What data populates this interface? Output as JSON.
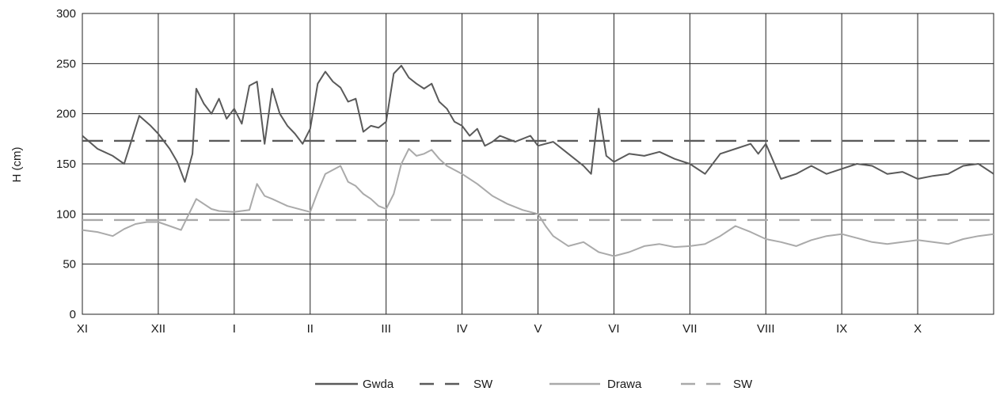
{
  "chart_data": {
    "type": "line",
    "title": "",
    "xlabel": "",
    "ylabel": "H (cm)",
    "ylim": [
      0,
      300
    ],
    "yticks": [
      "0",
      "50",
      "100",
      "150",
      "200",
      "250",
      "300"
    ],
    "categories": [
      "XI",
      "XII",
      "I",
      "II",
      "III",
      "IV",
      "V",
      "VI",
      "VII",
      "VIII",
      "IX",
      "X"
    ],
    "grid": "on",
    "legend_position": "bottom",
    "x_unit": "months (continuous, 12 months from XI to X)",
    "series": [
      {
        "name": "Gwda",
        "color": "#5a5a5a",
        "style": "solid",
        "x": [
          0.0,
          0.2,
          0.4,
          0.55,
          0.6,
          0.75,
          0.9,
          1.0,
          1.15,
          1.25,
          1.35,
          1.45,
          1.5,
          1.6,
          1.7,
          1.8,
          1.9,
          2.0,
          2.1,
          2.2,
          2.3,
          2.4,
          2.5,
          2.6,
          2.7,
          2.8,
          2.9,
          3.0,
          3.1,
          3.2,
          3.3,
          3.4,
          3.5,
          3.6,
          3.7,
          3.8,
          3.9,
          4.0,
          4.1,
          4.2,
          4.3,
          4.4,
          4.5,
          4.6,
          4.7,
          4.8,
          4.9,
          5.0,
          5.1,
          5.2,
          5.3,
          5.4,
          5.5,
          5.6,
          5.7,
          5.8,
          5.9,
          6.0,
          6.2,
          6.4,
          6.6,
          6.7,
          6.8,
          6.9,
          7.0,
          7.2,
          7.4,
          7.6,
          7.8,
          8.0,
          8.2,
          8.4,
          8.6,
          8.8,
          8.9,
          9.0,
          9.2,
          9.4,
          9.6,
          9.8,
          10.0,
          10.2,
          10.4,
          10.6,
          10.8,
          11.0,
          11.2,
          11.4,
          11.6,
          11.8,
          12.0
        ],
        "y": [
          178,
          165,
          158,
          150,
          162,
          198,
          188,
          180,
          165,
          152,
          132,
          160,
          225,
          210,
          200,
          215,
          195,
          205,
          190,
          228,
          232,
          170,
          225,
          200,
          188,
          180,
          170,
          185,
          230,
          242,
          232,
          226,
          212,
          215,
          182,
          188,
          186,
          192,
          240,
          248,
          236,
          230,
          225,
          230,
          212,
          205,
          192,
          188,
          178,
          185,
          168,
          172,
          178,
          175,
          172,
          175,
          178,
          168,
          172,
          160,
          148,
          140,
          205,
          158,
          152,
          160,
          158,
          162,
          155,
          150,
          140,
          160,
          165,
          170,
          160,
          170,
          135,
          140,
          148,
          140,
          145,
          150,
          148,
          140,
          142,
          135,
          138,
          140,
          148,
          150,
          140
        ],
        "ylabel_note": ""
      },
      {
        "name": "SW",
        "color": "#5a5a5a",
        "style": "dashed",
        "x": [
          0,
          12
        ],
        "y": [
          173,
          173
        ]
      },
      {
        "name": "Drawa",
        "color": "#aaaaaa",
        "style": "solid",
        "x": [
          0.0,
          0.2,
          0.4,
          0.55,
          0.7,
          0.85,
          1.0,
          1.15,
          1.3,
          1.5,
          1.6,
          1.7,
          1.8,
          2.0,
          2.2,
          2.3,
          2.4,
          2.5,
          2.7,
          2.9,
          3.0,
          3.1,
          3.2,
          3.4,
          3.5,
          3.6,
          3.7,
          3.8,
          3.9,
          4.0,
          4.1,
          4.2,
          4.3,
          4.4,
          4.5,
          4.6,
          4.7,
          4.8,
          5.0,
          5.2,
          5.4,
          5.6,
          5.8,
          6.0,
          6.1,
          6.2,
          6.4,
          6.6,
          6.8,
          7.0,
          7.2,
          7.4,
          7.6,
          7.8,
          8.0,
          8.2,
          8.4,
          8.6,
          8.8,
          9.0,
          9.2,
          9.4,
          9.6,
          9.8,
          10.0,
          10.2,
          10.4,
          10.6,
          10.8,
          11.0,
          11.2,
          11.4,
          11.6,
          11.8,
          12.0
        ],
        "y": [
          84,
          82,
          78,
          85,
          90,
          92,
          92,
          88,
          84,
          115,
          110,
          105,
          103,
          102,
          104,
          130,
          118,
          115,
          108,
          104,
          102,
          122,
          140,
          148,
          132,
          128,
          120,
          115,
          108,
          105,
          120,
          150,
          165,
          158,
          160,
          164,
          155,
          148,
          140,
          130,
          118,
          110,
          104,
          100,
          88,
          78,
          68,
          72,
          62,
          58,
          62,
          68,
          70,
          67,
          68,
          70,
          78,
          88,
          82,
          75,
          72,
          68,
          74,
          78,
          80,
          76,
          72,
          70,
          72,
          74,
          72,
          70,
          75,
          78,
          80
        ]
      },
      {
        "name": "SW",
        "color": "#aaaaaa",
        "style": "dashed",
        "x": [
          0,
          12
        ],
        "y": [
          94,
          94
        ]
      }
    ]
  }
}
